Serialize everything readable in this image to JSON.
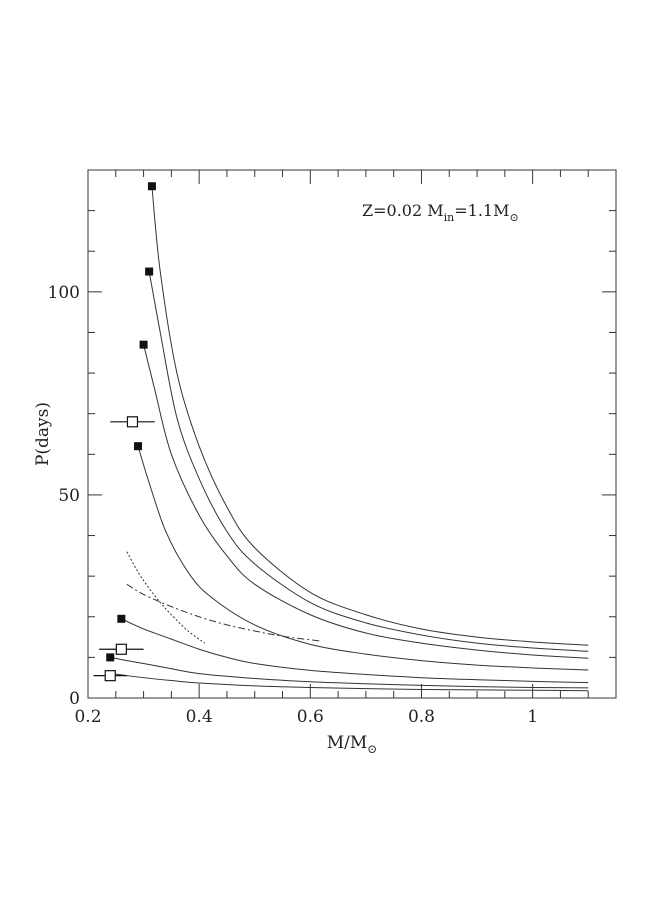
{
  "chart_data": {
    "type": "line",
    "xlabel": "M/M",
    "xlabel_symbol": "⊙",
    "ylabel": "P(days)",
    "xlim": [
      0.2,
      1.15
    ],
    "ylim": [
      0,
      130
    ],
    "x_ticks": [
      0.2,
      0.4,
      0.6,
      0.8,
      1.0
    ],
    "x_tick_labels": [
      "0.2",
      "0.4",
      "0.6",
      "0.8",
      "1"
    ],
    "y_ticks": [
      0,
      50,
      100
    ],
    "y_tick_labels": [
      "0",
      "50",
      "100"
    ],
    "annotation": {
      "prefix": "Z=0.02  M",
      "subscript": "in",
      "middle": "=1.1M",
      "symbol": "⊙"
    },
    "series": [
      {
        "values": [
          [
            0.315,
            126
          ],
          [
            0.33,
            105
          ],
          [
            0.36,
            80
          ],
          [
            0.4,
            62
          ],
          [
            0.45,
            47
          ],
          [
            0.5,
            37
          ],
          [
            0.6,
            26
          ],
          [
            0.7,
            20.5
          ],
          [
            0.8,
            17
          ],
          [
            0.9,
            15
          ],
          [
            1.0,
            13.8
          ],
          [
            1.1,
            13.0
          ]
        ]
      },
      {
        "values": [
          [
            0.31,
            105
          ],
          [
            0.33,
            90
          ],
          [
            0.36,
            69
          ],
          [
            0.4,
            54
          ],
          [
            0.45,
            41
          ],
          [
            0.5,
            33
          ],
          [
            0.6,
            23.5
          ],
          [
            0.7,
            18.5
          ],
          [
            0.8,
            15.5
          ],
          [
            0.9,
            13.5
          ],
          [
            1.0,
            12.3
          ],
          [
            1.1,
            11.5
          ]
        ]
      },
      {
        "values": [
          [
            0.3,
            87
          ],
          [
            0.32,
            76
          ],
          [
            0.35,
            60
          ],
          [
            0.4,
            45
          ],
          [
            0.45,
            35
          ],
          [
            0.5,
            28
          ],
          [
            0.6,
            20.5
          ],
          [
            0.7,
            16
          ],
          [
            0.8,
            13.5
          ],
          [
            0.9,
            11.8
          ],
          [
            1.0,
            10.6
          ],
          [
            1.1,
            9.8
          ]
        ]
      },
      {
        "values": [
          [
            0.29,
            62
          ],
          [
            0.31,
            53
          ],
          [
            0.34,
            41
          ],
          [
            0.38,
            31
          ],
          [
            0.42,
            25
          ],
          [
            0.5,
            18
          ],
          [
            0.6,
            13.2
          ],
          [
            0.7,
            10.8
          ],
          [
            0.8,
            9.2
          ],
          [
            0.9,
            8.1
          ],
          [
            1.0,
            7.4
          ],
          [
            1.1,
            6.9
          ]
        ]
      },
      {
        "values": [
          [
            0.26,
            19.5
          ],
          [
            0.3,
            17
          ],
          [
            0.35,
            14.5
          ],
          [
            0.4,
            12
          ],
          [
            0.45,
            10
          ],
          [
            0.5,
            8.5
          ],
          [
            0.6,
            6.8
          ],
          [
            0.7,
            5.8
          ],
          [
            0.8,
            5.0
          ],
          [
            0.9,
            4.5
          ],
          [
            1.0,
            4.1
          ],
          [
            1.1,
            3.8
          ]
        ]
      },
      {
        "values": [
          [
            0.24,
            10
          ],
          [
            0.27,
            9.2
          ],
          [
            0.3,
            8.5
          ],
          [
            0.35,
            7.2
          ],
          [
            0.4,
            6.0
          ],
          [
            0.5,
            4.8
          ],
          [
            0.6,
            4.0
          ],
          [
            0.7,
            3.5
          ],
          [
            0.8,
            3.1
          ],
          [
            0.9,
            2.8
          ],
          [
            1.0,
            2.6
          ],
          [
            1.1,
            2.5
          ]
        ]
      },
      {
        "values": [
          [
            0.24,
            6
          ],
          [
            0.26,
            5.7
          ],
          [
            0.3,
            5.0
          ],
          [
            0.35,
            4.3
          ],
          [
            0.4,
            3.7
          ],
          [
            0.5,
            3.0
          ],
          [
            0.6,
            2.6
          ],
          [
            0.7,
            2.3
          ],
          [
            0.8,
            2.1
          ],
          [
            0.9,
            2.0
          ],
          [
            1.0,
            1.9
          ],
          [
            1.1,
            1.8
          ]
        ]
      }
    ],
    "dashed_line": {
      "values": [
        [
          0.27,
          28
        ],
        [
          0.3,
          25.5
        ],
        [
          0.35,
          22.5
        ],
        [
          0.4,
          20
        ],
        [
          0.45,
          18
        ],
        [
          0.5,
          16.5
        ],
        [
          0.55,
          15.2
        ],
        [
          0.62,
          14
        ]
      ]
    },
    "dotted_line": {
      "values": [
        [
          0.27,
          36
        ],
        [
          0.29,
          31
        ],
        [
          0.31,
          27
        ],
        [
          0.33,
          23.5
        ],
        [
          0.35,
          20.5
        ],
        [
          0.38,
          16.5
        ],
        [
          0.41,
          13.5
        ]
      ]
    },
    "filled_markers": [
      [
        0.315,
        126
      ],
      [
        0.31,
        105
      ],
      [
        0.3,
        87
      ],
      [
        0.29,
        62
      ],
      [
        0.26,
        19.5
      ],
      [
        0.24,
        10
      ]
    ],
    "open_markers_with_errorbars": [
      {
        "x": 0.28,
        "y": 68,
        "xerr": 0.04
      },
      {
        "x": 0.26,
        "y": 12,
        "xerr": 0.04
      },
      {
        "x": 0.24,
        "y": 5.5,
        "xerr": 0.03
      }
    ],
    "grid": false
  }
}
